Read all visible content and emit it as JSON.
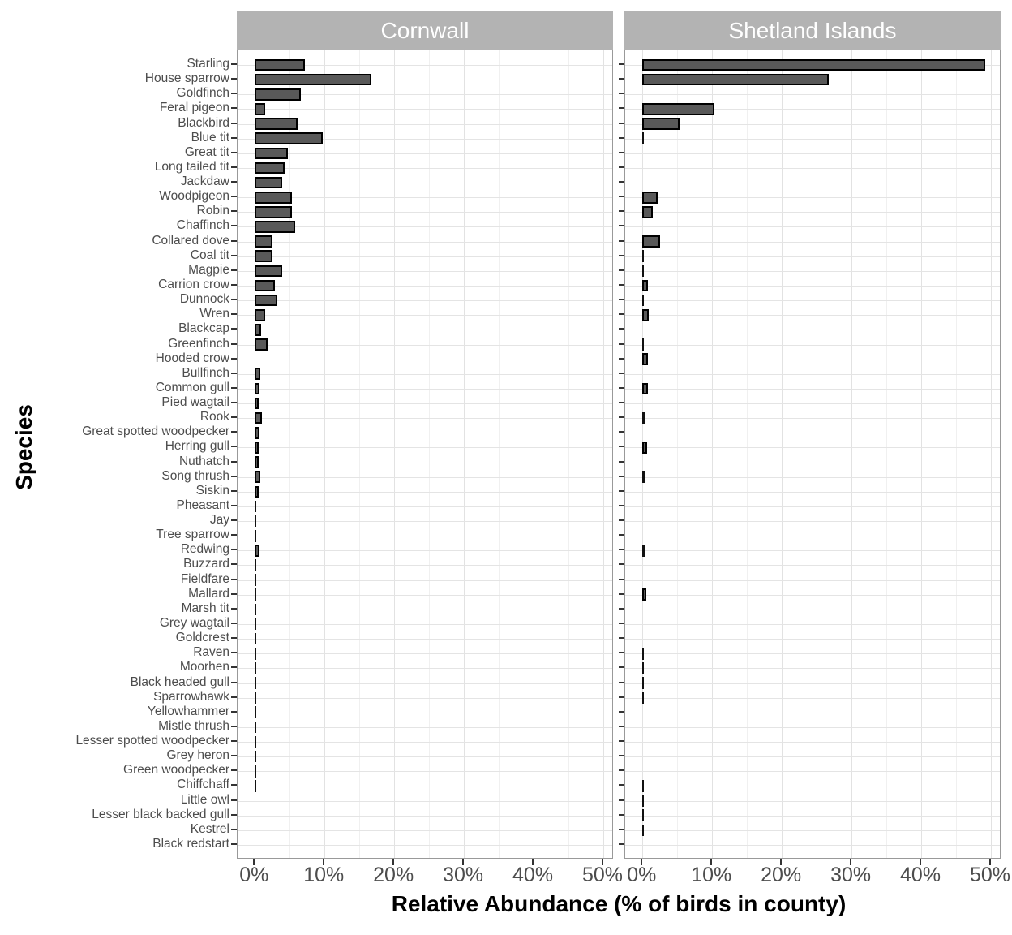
{
  "figure": {
    "y_axis_title": "Species",
    "x_axis_title": "Relative Abundance (% of birds in county)",
    "facets": [
      "Cornwall",
      "Shetland Islands"
    ],
    "x_tick_labels": [
      "0%",
      "10%",
      "20%",
      "30%",
      "40%",
      "50%"
    ]
  },
  "colors": {
    "bar_fill": "#595959",
    "bar_stroke": "#000000",
    "strip_fill": "#b3b3b3",
    "strip_text": "#ffffff",
    "axis_text": "#4d4d4d",
    "grid_major": "#e2e2e2",
    "grid_minor": "#f0f0f0",
    "panel_border": "#999999"
  },
  "chart_data": {
    "type": "bar",
    "orientation": "horizontal",
    "facet_variable": "county",
    "xlabel": "Relative Abundance (% of birds in county)",
    "ylabel": "Species",
    "xlim": [
      0,
      50
    ],
    "x_ticks_percent": [
      0,
      10,
      20,
      30,
      40,
      50
    ],
    "x_minor_ticks_percent": [
      5,
      15,
      25,
      35,
      45
    ],
    "grid": true,
    "legend": "none",
    "categories": [
      "Starling",
      "House sparrow",
      "Goldfinch",
      "Feral pigeon",
      "Blackbird",
      "Blue tit",
      "Great tit",
      "Long tailed tit",
      "Jackdaw",
      "Woodpigeon",
      "Robin",
      "Chaffinch",
      "Collared dove",
      "Coal tit",
      "Magpie",
      "Carrion crow",
      "Dunnock",
      "Wren",
      "Blackcap",
      "Greenfinch",
      "Hooded crow",
      "Bullfinch",
      "Common gull",
      "Pied wagtail",
      "Rook",
      "Great spotted woodpecker",
      "Herring gull",
      "Nuthatch",
      "Song thrush",
      "Siskin",
      "Pheasant",
      "Jay",
      "Tree sparrow",
      "Redwing",
      "Buzzard",
      "Fieldfare",
      "Mallard",
      "Marsh tit",
      "Grey wagtail",
      "Goldcrest",
      "Raven",
      "Moorhen",
      "Black headed gull",
      "Sparrowhawk",
      "Yellowhammer",
      "Mistle thrush",
      "Lesser spotted woodpecker",
      "Grey heron",
      "Green woodpecker",
      "Chiffchaff",
      "Little owl",
      "Lesser black backed gull",
      "Kestrel",
      "Black redstart"
    ],
    "series": [
      {
        "name": "Cornwall",
        "values": [
          7.0,
          16.5,
          6.4,
          1.3,
          6.0,
          9.6,
          4.6,
          4.1,
          3.8,
          5.2,
          5.1,
          5.6,
          2.4,
          2.3,
          3.7,
          2.7,
          3.1,
          1.3,
          0.7,
          1.6,
          null,
          0.55,
          0.45,
          0.35,
          0.8,
          0.5,
          0.35,
          0.35,
          0.65,
          0.4,
          0.15,
          0.15,
          0.1,
          0.45,
          0.2,
          0.1,
          0.15,
          0.1,
          0.1,
          0.1,
          0.08,
          0.08,
          0.2,
          0.1,
          0.05,
          0.05,
          0.05,
          0.05,
          0.05,
          0.1,
          null,
          null,
          null,
          null
        ]
      },
      {
        "name": "Shetland Islands",
        "values": [
          49.0,
          26.5,
          null,
          10.1,
          5.1,
          0.08,
          null,
          null,
          null,
          2.0,
          1.3,
          null,
          2.4,
          0.08,
          0.08,
          0.55,
          0.1,
          0.7,
          null,
          0.05,
          0.65,
          null,
          0.6,
          null,
          0.3,
          null,
          0.5,
          null,
          0.3,
          null,
          null,
          null,
          null,
          0.3,
          null,
          null,
          0.35,
          null,
          null,
          null,
          0.12,
          0.12,
          0.12,
          0.12,
          null,
          null,
          null,
          null,
          null,
          0.1,
          0.1,
          0.1,
          0.1,
          null
        ]
      }
    ]
  }
}
